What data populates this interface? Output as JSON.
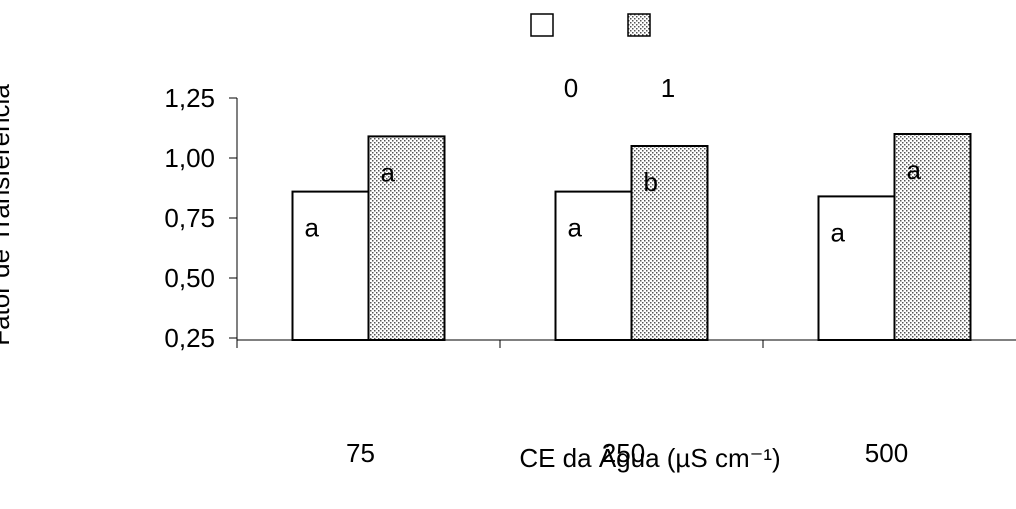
{
  "chart_data": {
    "type": "bar",
    "y_label": "Fator de Transferência",
    "x_label": "CE da Água (µS cm⁻¹)",
    "categories": [
      "75",
      "250",
      "500"
    ],
    "series": [
      {
        "name": "0",
        "color": "#ffffff",
        "values": [
          0.86,
          0.86,
          0.84
        ],
        "letters": [
          "a",
          "a",
          "a"
        ]
      },
      {
        "name": "1",
        "color": "dotted",
        "values": [
          1.09,
          1.05,
          1.1
        ],
        "letters": [
          "a",
          "b",
          "a"
        ]
      }
    ],
    "ylim": [
      0.25,
      1.25
    ],
    "yticks": [
      {
        "value": 0.25,
        "label": "0,25"
      },
      {
        "value": 0.5,
        "label": "0,50"
      },
      {
        "value": 0.75,
        "label": "0,75"
      },
      {
        "value": 1.0,
        "label": "1,00"
      },
      {
        "value": 1.25,
        "label": "1,25"
      }
    ]
  }
}
